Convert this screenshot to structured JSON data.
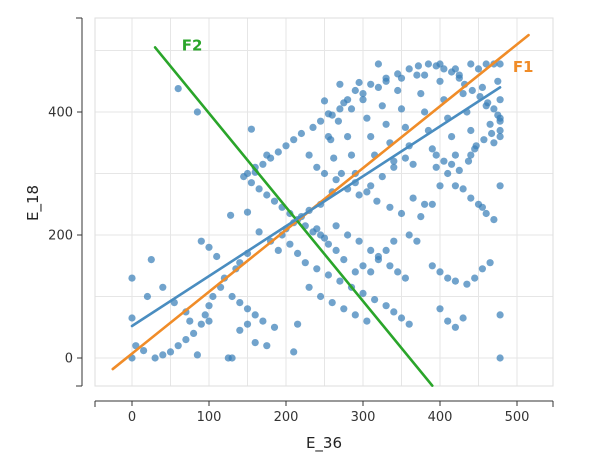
{
  "chart_data": {
    "type": "scatter",
    "xlabel": "E_36",
    "ylabel": "E_18",
    "xlim": [
      -50,
      550
    ],
    "ylim": [
      -50,
      550
    ],
    "x_ticks": [
      0,
      100,
      200,
      300,
      400,
      500
    ],
    "y_ticks": [
      0,
      200,
      400
    ],
    "grid": true,
    "point_color": "#3a7fb8",
    "points": [
      [
        60,
        438
      ],
      [
        85,
        400
      ],
      [
        128,
        232
      ],
      [
        150,
        237
      ],
      [
        155,
        372
      ],
      [
        160,
        302
      ],
      [
        175,
        330
      ],
      [
        250,
        418
      ],
      [
        255,
        397
      ],
      [
        258,
        355
      ],
      [
        262,
        325
      ],
      [
        270,
        445
      ],
      [
        275,
        415
      ],
      [
        280,
        360
      ],
      [
        285,
        330
      ],
      [
        290,
        300
      ],
      [
        295,
        448
      ],
      [
        300,
        420
      ],
      [
        305,
        390
      ],
      [
        310,
        360
      ],
      [
        315,
        330
      ],
      [
        320,
        440
      ],
      [
        325,
        410
      ],
      [
        330,
        380
      ],
      [
        335,
        350
      ],
      [
        340,
        320
      ],
      [
        345,
        435
      ],
      [
        350,
        405
      ],
      [
        355,
        375
      ],
      [
        360,
        345
      ],
      [
        365,
        315
      ],
      [
        370,
        460
      ],
      [
        375,
        430
      ],
      [
        380,
        400
      ],
      [
        385,
        370
      ],
      [
        390,
        340
      ],
      [
        395,
        310
      ],
      [
        400,
        450
      ],
      [
        405,
        420
      ],
      [
        410,
        390
      ],
      [
        415,
        360
      ],
      [
        420,
        330
      ],
      [
        425,
        460
      ],
      [
        430,
        430
      ],
      [
        435,
        400
      ],
      [
        440,
        370
      ],
      [
        445,
        340
      ],
      [
        450,
        470
      ],
      [
        455,
        440
      ],
      [
        460,
        410
      ],
      [
        465,
        380
      ],
      [
        470,
        478
      ],
      [
        475,
        450
      ],
      [
        478,
        420
      ],
      [
        478,
        390
      ],
      [
        478,
        478
      ],
      [
        320,
        478
      ],
      [
        400,
        478
      ],
      [
        440,
        478
      ],
      [
        460,
        478
      ],
      [
        420,
        470
      ],
      [
        380,
        460
      ],
      [
        350,
        455
      ],
      [
        330,
        450
      ],
      [
        300,
        430
      ],
      [
        285,
        405
      ],
      [
        268,
        385
      ],
      [
        255,
        360
      ],
      [
        272,
        300
      ],
      [
        290,
        285
      ],
      [
        305,
        270
      ],
      [
        318,
        255
      ],
      [
        335,
        245
      ],
      [
        350,
        235
      ],
      [
        365,
        260
      ],
      [
        375,
        230
      ],
      [
        390,
        250
      ],
      [
        260,
        270
      ],
      [
        245,
        250
      ],
      [
        230,
        240
      ],
      [
        220,
        230
      ],
      [
        210,
        220
      ],
      [
        200,
        210
      ],
      [
        195,
        200
      ],
      [
        205,
        185
      ],
      [
        215,
        170
      ],
      [
        225,
        155
      ],
      [
        240,
        145
      ],
      [
        255,
        135
      ],
      [
        270,
        125
      ],
      [
        285,
        115
      ],
      [
        300,
        105
      ],
      [
        315,
        95
      ],
      [
        330,
        85
      ],
      [
        340,
        75
      ],
      [
        350,
        65
      ],
      [
        360,
        55
      ],
      [
        230,
        115
      ],
      [
        245,
        100
      ],
      [
        260,
        90
      ],
      [
        275,
        80
      ],
      [
        290,
        70
      ],
      [
        305,
        60
      ],
      [
        165,
        205
      ],
      [
        180,
        190
      ],
      [
        190,
        175
      ],
      [
        150,
        170
      ],
      [
        140,
        155
      ],
      [
        135,
        145
      ],
      [
        120,
        130
      ],
      [
        115,
        115
      ],
      [
        105,
        100
      ],
      [
        100,
        85
      ],
      [
        95,
        70
      ],
      [
        90,
        55
      ],
      [
        80,
        40
      ],
      [
        70,
        30
      ],
      [
        60,
        20
      ],
      [
        50,
        10
      ],
      [
        40,
        5
      ],
      [
        30,
        0
      ],
      [
        15,
        12
      ],
      [
        5,
        20
      ],
      [
        0,
        0
      ],
      [
        0,
        65
      ],
      [
        0,
        130
      ],
      [
        20,
        100
      ],
      [
        25,
        160
      ],
      [
        40,
        115
      ],
      [
        55,
        90
      ],
      [
        70,
        75
      ],
      [
        75,
        60
      ],
      [
        90,
        190
      ],
      [
        100,
        180
      ],
      [
        110,
        165
      ],
      [
        130,
        100
      ],
      [
        140,
        90
      ],
      [
        150,
        80
      ],
      [
        160,
        70
      ],
      [
        170,
        60
      ],
      [
        185,
        50
      ],
      [
        150,
        55
      ],
      [
        140,
        45
      ],
      [
        125,
        0
      ],
      [
        130,
        0
      ],
      [
        160,
        25
      ],
      [
        175,
        20
      ],
      [
        210,
        10
      ],
      [
        215,
        55
      ],
      [
        100,
        60
      ],
      [
        85,
        5
      ],
      [
        240,
        210
      ],
      [
        250,
        195
      ],
      [
        265,
        215
      ],
      [
        280,
        200
      ],
      [
        295,
        190
      ],
      [
        310,
        175
      ],
      [
        320,
        160
      ],
      [
        335,
        150
      ],
      [
        345,
        140
      ],
      [
        355,
        130
      ],
      [
        230,
        330
      ],
      [
        240,
        310
      ],
      [
        250,
        300
      ],
      [
        265,
        290
      ],
      [
        280,
        275
      ],
      [
        295,
        265
      ],
      [
        310,
        280
      ],
      [
        325,
        295
      ],
      [
        340,
        310
      ],
      [
        355,
        325
      ],
      [
        400,
        280
      ],
      [
        410,
        300
      ],
      [
        420,
        280
      ],
      [
        430,
        275
      ],
      [
        440,
        260
      ],
      [
        450,
        250
      ],
      [
        455,
        245
      ],
      [
        460,
        235
      ],
      [
        470,
        225
      ],
      [
        478,
        280
      ],
      [
        400,
        80
      ],
      [
        410,
        60
      ],
      [
        420,
        50
      ],
      [
        430,
        65
      ],
      [
        435,
        120
      ],
      [
        445,
        130
      ],
      [
        455,
        145
      ],
      [
        465,
        155
      ],
      [
        478,
        70
      ],
      [
        478,
        0
      ],
      [
        395,
        330
      ],
      [
        405,
        320
      ],
      [
        415,
        315
      ],
      [
        425,
        305
      ],
      [
        437,
        320
      ],
      [
        447,
        345
      ],
      [
        457,
        355
      ],
      [
        467,
        365
      ],
      [
        470,
        350
      ],
      [
        440,
        330
      ],
      [
        360,
        200
      ],
      [
        370,
        190
      ],
      [
        380,
        250
      ],
      [
        390,
        150
      ],
      [
        400,
        140
      ],
      [
        410,
        130
      ],
      [
        420,
        125
      ],
      [
        340,
        190
      ],
      [
        330,
        175
      ],
      [
        320,
        165
      ],
      [
        300,
        150
      ],
      [
        310,
        140
      ],
      [
        290,
        140
      ],
      [
        275,
        160
      ],
      [
        265,
        175
      ],
      [
        255,
        185
      ],
      [
        245,
        200
      ],
      [
        235,
        205
      ],
      [
        225,
        215
      ],
      [
        215,
        225
      ],
      [
        205,
        235
      ],
      [
        195,
        245
      ],
      [
        185,
        255
      ],
      [
        175,
        265
      ],
      [
        165,
        275
      ],
      [
        155,
        285
      ],
      [
        145,
        295
      ],
      [
        150,
        300
      ],
      [
        160,
        310
      ],
      [
        170,
        315
      ],
      [
        180,
        325
      ],
      [
        190,
        335
      ],
      [
        200,
        345
      ],
      [
        210,
        355
      ],
      [
        220,
        365
      ],
      [
        235,
        375
      ],
      [
        245,
        385
      ],
      [
        260,
        395
      ],
      [
        270,
        405
      ],
      [
        280,
        420
      ],
      [
        290,
        435
      ],
      [
        310,
        445
      ],
      [
        330,
        455
      ],
      [
        345,
        462
      ],
      [
        360,
        470
      ],
      [
        372,
        475
      ],
      [
        385,
        478
      ],
      [
        395,
        475
      ],
      [
        405,
        470
      ],
      [
        415,
        465
      ],
      [
        425,
        455
      ],
      [
        432,
        445
      ],
      [
        442,
        435
      ],
      [
        452,
        425
      ],
      [
        462,
        415
      ],
      [
        470,
        405
      ],
      [
        475,
        395
      ],
      [
        478,
        385
      ],
      [
        478,
        370
      ],
      [
        478,
        360
      ]
    ],
    "lines": [
      {
        "name": "F1",
        "color": "#f08c28",
        "x": [
          -25,
          515
        ],
        "y": [
          -18,
          525
        ]
      },
      {
        "name": "F2",
        "color": "#2aa52a",
        "x": [
          30,
          390
        ],
        "y": [
          505,
          -45
        ]
      },
      {
        "name": "",
        "color": "#4a8dc0",
        "x": [
          0,
          478
        ],
        "y": [
          52,
          440
        ]
      }
    ],
    "line_labels": [
      {
        "text": "F2",
        "color": "#2aa52a",
        "x": 78,
        "y": 500
      },
      {
        "text": "F1",
        "color": "#f08c28",
        "x": 508,
        "y": 465
      }
    ]
  }
}
